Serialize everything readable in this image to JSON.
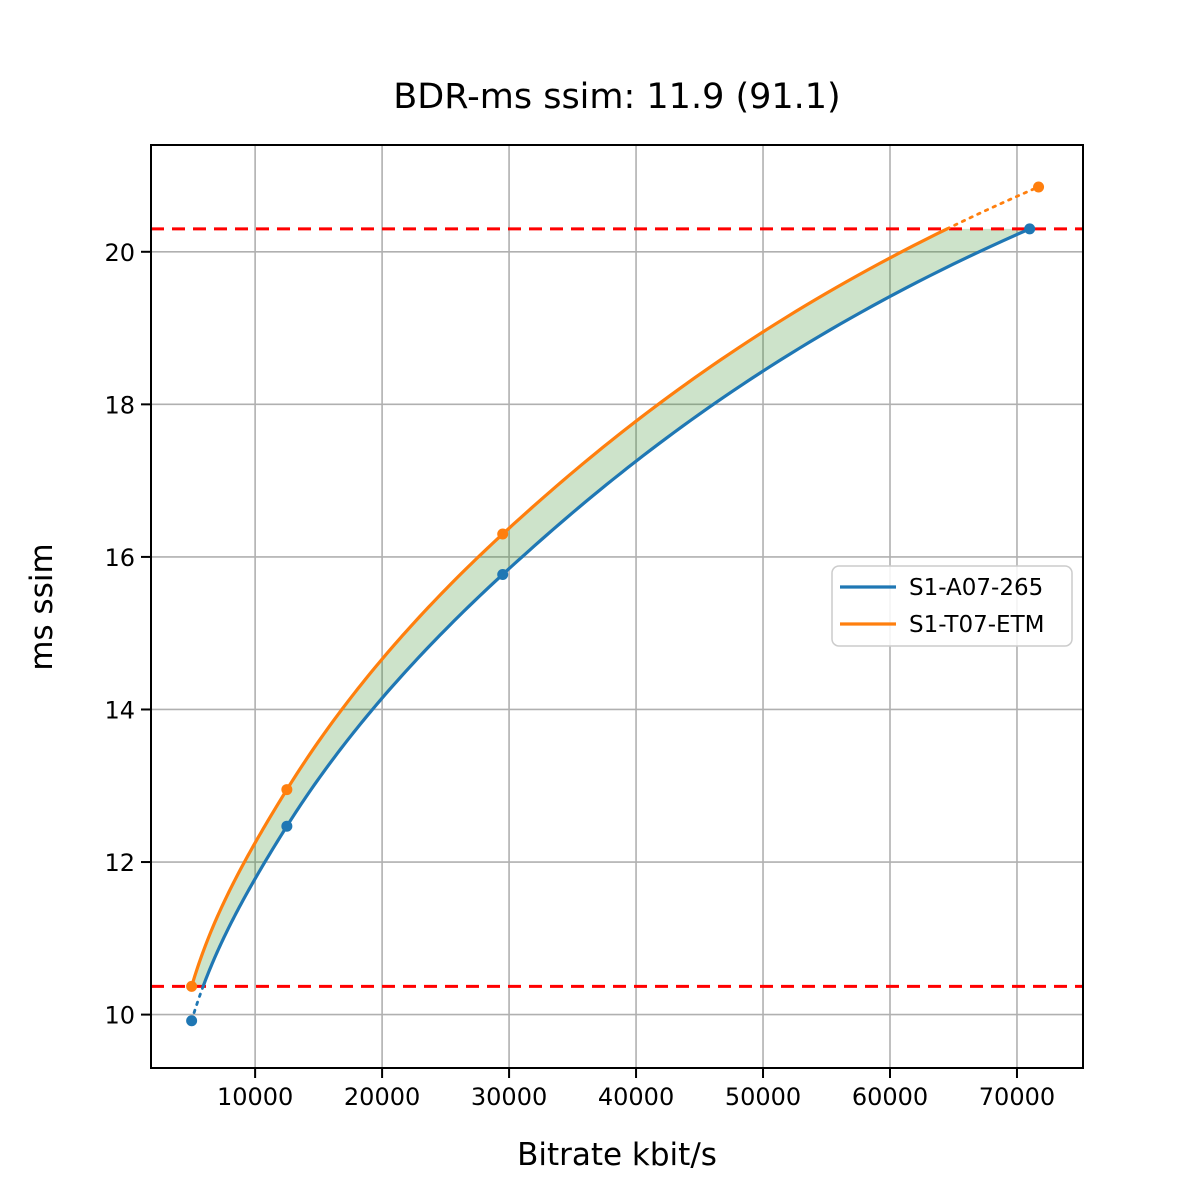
{
  "chart_data": {
    "type": "line",
    "title": "BDR-ms ssim: 11.9 (91.1)",
    "xlabel": "Bitrate kbit/s",
    "ylabel": "ms ssim",
    "xlim": [
      1800,
      75200
    ],
    "ylim": [
      9.3,
      21.4
    ],
    "x_ticks": [
      10000,
      20000,
      30000,
      40000,
      50000,
      60000,
      70000
    ],
    "y_ticks": [
      10,
      12,
      14,
      16,
      18,
      20
    ],
    "grid": true,
    "grid_color": "#b0b0b0",
    "background": "#ffffff",
    "legend_position": "center right",
    "series": [
      {
        "name": "S1-A07-265",
        "color": "#1f77b4",
        "marker": "circle",
        "points": [
          [
            5000,
            9.92
          ],
          [
            12500,
            12.47
          ],
          [
            29500,
            15.77
          ],
          [
            71000,
            20.3
          ]
        ]
      },
      {
        "name": "S1-T07-ETM",
        "color": "#ff7f0e",
        "marker": "circle",
        "points": [
          [
            5000,
            10.37
          ],
          [
            12500,
            12.95
          ],
          [
            29500,
            16.3
          ],
          [
            71700,
            20.85
          ]
        ]
      }
    ],
    "hlines": {
      "values": [
        10.37,
        20.3
      ],
      "color": "#ff0000",
      "style": "dashed"
    },
    "overlap_fill": {
      "color": "#2f8b23",
      "opacity": 0.24,
      "y_range": [
        10.37,
        20.3
      ]
    }
  }
}
